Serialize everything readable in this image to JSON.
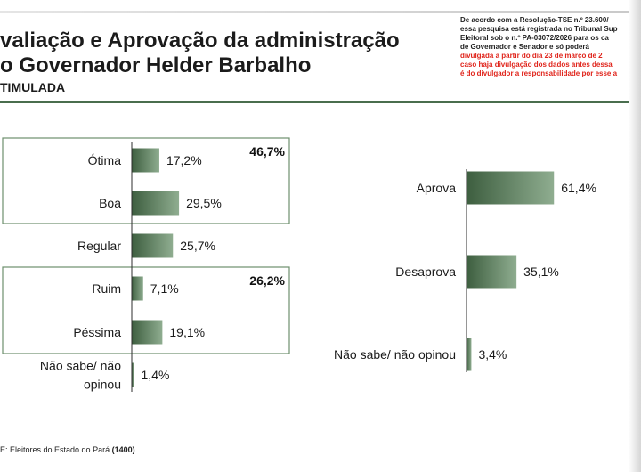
{
  "header": {
    "title_line1": "valiação e Aprovação da administração",
    "title_line2": "o Governador Helder Barbalho",
    "subtitle": "TIMULADA",
    "notice_lines": [
      {
        "text": "De acordo com a Resolução-TSE n.º 23.600/",
        "color": "#222222"
      },
      {
        "text": "essa pesquisa está registrada no Tribunal Sup",
        "color": "#222222"
      },
      {
        "text": "Eleitoral sob o n.º PA-03072/2026 para os ca",
        "color": "#222222"
      },
      {
        "text": "de Governador e Senador e só poderá",
        "color": "#222222"
      },
      {
        "text": "divulgada a partir do dia 23 de março de 2",
        "color": "#e0241b"
      },
      {
        "text": "caso haja divulgação dos dados antes dessa",
        "color": "#e0241b"
      },
      {
        "text": "é do divulgador a responsabilidade por esse a",
        "color": "#e0241b"
      }
    ]
  },
  "footer": {
    "prefix": "E: Eleitores do Estado do Pará ",
    "count": "(1400)"
  },
  "colors": {
    "bar_dark": "#3d5e3f",
    "bar_light": "#8fad90",
    "frame_green": "#6d8f6d",
    "rule_green": "#4a6e4e"
  },
  "chart_data": [
    {
      "type": "bar",
      "orientation": "horizontal",
      "categories": [
        "Ótima",
        "Boa",
        "Regular",
        "Ruim",
        "Péssima",
        "Não sabe/ não opinou"
      ],
      "values": [
        17.2,
        29.5,
        25.7,
        7.1,
        19.1,
        1.4
      ],
      "value_labels": [
        "17,2%",
        "29,5%",
        "25,7%",
        "7,1%",
        "19,1%",
        "1,4%"
      ],
      "group_totals": [
        {
          "label": "46,7%",
          "members": [
            "Ótima",
            "Boa"
          ]
        },
        {
          "label": "26,2%",
          "members": [
            "Ruim",
            "Péssima"
          ]
        }
      ]
    },
    {
      "type": "bar",
      "orientation": "horizontal",
      "categories": [
        "Aprova",
        "Desaprova",
        "Não sabe/ não opinou"
      ],
      "values": [
        61.4,
        35.1,
        3.4
      ],
      "value_labels": [
        "61,4%",
        "35,1%",
        "3,4%"
      ]
    }
  ]
}
